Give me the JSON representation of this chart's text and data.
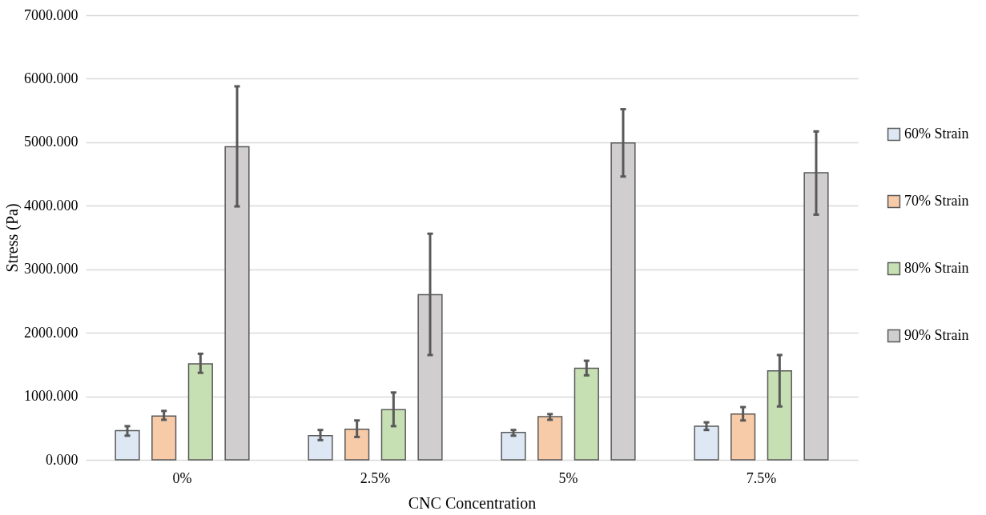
{
  "chart_data": {
    "type": "bar",
    "xlabel": "CNC Concentration",
    "ylabel": "Stress (Pa)",
    "categories": [
      "0%",
      "2.5%",
      "5%",
      "7.5%"
    ],
    "series": [
      {
        "name": "60% Strain",
        "color": "#dde8f4",
        "values": [
          460,
          380,
          430,
          530
        ],
        "errors": [
          [
            380,
            530
          ],
          [
            310,
            470
          ],
          [
            380,
            470
          ],
          [
            470,
            590
          ]
        ]
      },
      {
        "name": "70% Strain",
        "color": "#f7caa8",
        "values": [
          690,
          480,
          680,
          720
        ],
        "errors": [
          [
            630,
            770
          ],
          [
            360,
            620
          ],
          [
            630,
            720
          ],
          [
            620,
            830
          ]
        ]
      },
      {
        "name": "80% Strain",
        "color": "#c6e0b4",
        "values": [
          1510,
          790,
          1440,
          1400
        ],
        "errors": [
          [
            1370,
            1670
          ],
          [
            530,
            1060
          ],
          [
            1330,
            1560
          ],
          [
            840,
            1650
          ]
        ]
      },
      {
        "name": "90% Strain",
        "color": "#d0cece",
        "values": [
          4930,
          2600,
          4990,
          4520
        ],
        "errors": [
          [
            3990,
            5880
          ],
          [
            1650,
            3560
          ],
          [
            4460,
            5520
          ],
          [
            3860,
            5170
          ]
        ]
      }
    ],
    "ylim": [
      0,
      7000
    ],
    "yticks": [
      {
        "value": 0,
        "label": "0.000"
      },
      {
        "value": 1000,
        "label": "1000.000"
      },
      {
        "value": 2000,
        "label": "2000.000"
      },
      {
        "value": 3000,
        "label": "3000.000"
      },
      {
        "value": 4000,
        "label": "4000.000"
      },
      {
        "value": 5000,
        "label": "5000.000"
      },
      {
        "value": 6000,
        "label": "6000.000"
      },
      {
        "value": 7000,
        "label": "7000.000"
      }
    ],
    "grid": "y",
    "legend": "right"
  }
}
